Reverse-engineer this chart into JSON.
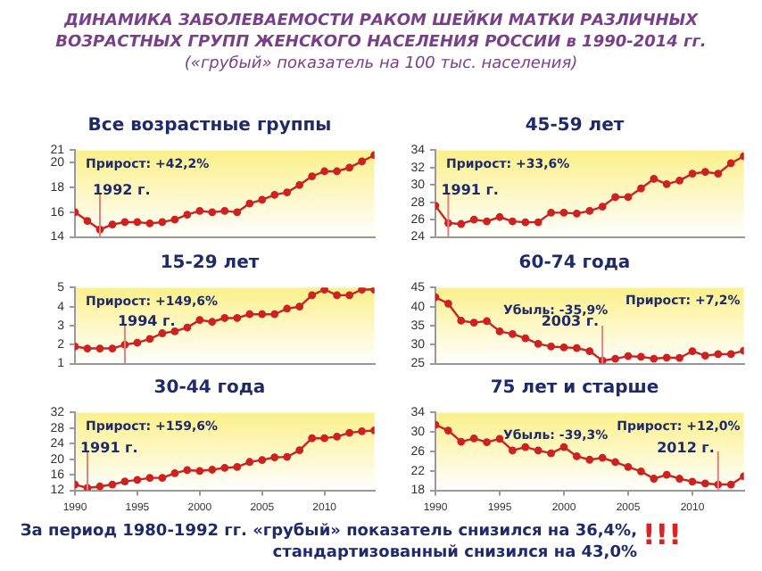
{
  "chart_data": [
    {
      "type": "other",
      "title": "ДИНАМИКА ЗАБОЛЕВАЕМОСТИ РАКОМ ШЕЙКИ МАТКИ РАЗЛИЧНЫХ ВОЗРАСТНЫХ ГРУПП ЖЕНСКОГО НАСЕЛЕНИЯ РОССИИ в 1990-2014 гг.",
      "subtitle": "(«грубый» показатель на 100 тыс. населения)"
    },
    {
      "type": "line",
      "title": "Все возрастные группы",
      "x": [
        1990,
        1991,
        1992,
        1993,
        1994,
        1995,
        1996,
        1997,
        1998,
        1999,
        2000,
        2001,
        2002,
        2003,
        2004,
        2005,
        2006,
        2007,
        2008,
        2009,
        2010,
        2011,
        2012,
        2013,
        2014
      ],
      "series": [
        {
          "color": "#cc2222",
          "values": [
            16.0,
            15.3,
            14.6,
            15.0,
            15.2,
            15.2,
            15.1,
            15.2,
            15.4,
            15.8,
            16.1,
            16.0,
            16.1,
            16.0,
            16.7,
            17.0,
            17.4,
            17.6,
            18.2,
            18.9,
            19.3,
            19.3,
            19.6,
            20.1,
            20.6
          ]
        }
      ],
      "xlim": [
        1990,
        2014
      ],
      "ylim": [
        14,
        21
      ],
      "yticks": [
        14,
        16,
        18,
        20,
        21
      ],
      "tick_labels": "y",
      "marker": "circle",
      "legend": false,
      "grid": false,
      "ref_lines": [
        {
          "axis": "x",
          "value": 1992,
          "label": "1992 г."
        }
      ],
      "annotations": [
        "Прирост: +42,2%"
      ]
    },
    {
      "type": "line",
      "title": "45-59 лет",
      "x": [
        1990,
        1991,
        1992,
        1993,
        1994,
        1995,
        1996,
        1997,
        1998,
        1999,
        2000,
        2001,
        2002,
        2003,
        2004,
        2005,
        2006,
        2007,
        2008,
        2009,
        2010,
        2011,
        2012,
        2013,
        2014
      ],
      "series": [
        {
          "color": "#cc2222",
          "values": [
            27.6,
            25.6,
            25.5,
            26.0,
            25.8,
            26.3,
            25.8,
            25.7,
            25.7,
            26.8,
            26.8,
            26.7,
            27.0,
            27.5,
            28.6,
            28.6,
            29.6,
            30.7,
            30.1,
            30.5,
            31.3,
            31.5,
            31.3,
            32.5,
            33.3
          ]
        }
      ],
      "xlim": [
        1990,
        2014
      ],
      "ylim": [
        24,
        34
      ],
      "yticks": [
        24,
        26,
        28,
        30,
        32,
        34
      ],
      "tick_labels": "y",
      "marker": "circle",
      "legend": false,
      "grid": false,
      "ref_lines": [
        {
          "axis": "x",
          "value": 1991,
          "label": "1991 г."
        }
      ],
      "annotations": [
        "Прирост: +33,6%"
      ]
    },
    {
      "type": "line",
      "title": "15-29 лет",
      "x": [
        1990,
        1991,
        1992,
        1993,
        1994,
        1995,
        1996,
        1997,
        1998,
        1999,
        2000,
        2001,
        2002,
        2003,
        2004,
        2005,
        2006,
        2007,
        2008,
        2009,
        2010,
        2011,
        2012,
        2013,
        2014
      ],
      "series": [
        {
          "color": "#cc2222",
          "values": [
            1.9,
            1.8,
            1.8,
            1.8,
            2.0,
            2.1,
            2.3,
            2.6,
            2.7,
            2.9,
            3.3,
            3.2,
            3.4,
            3.4,
            3.6,
            3.6,
            3.6,
            3.9,
            4.0,
            4.6,
            4.9,
            4.6,
            4.6,
            4.9,
            4.9
          ]
        }
      ],
      "xlim": [
        1990,
        2014
      ],
      "ylim": [
        1,
        5
      ],
      "yticks": [
        1,
        2,
        3,
        4,
        5
      ],
      "tick_labels": "y",
      "marker": "circle",
      "legend": false,
      "grid": false,
      "ref_lines": [
        {
          "axis": "x",
          "value": 1994,
          "label": "1994 г."
        }
      ],
      "annotations": [
        "Прирост: +149,6%"
      ]
    },
    {
      "type": "line",
      "title": "60-74 года",
      "x": [
        1990,
        1991,
        1992,
        1993,
        1994,
        1995,
        1996,
        1997,
        1998,
        1999,
        2000,
        2001,
        2002,
        2003,
        2004,
        2005,
        2006,
        2007,
        2008,
        2009,
        2010,
        2011,
        2012,
        2013,
        2014
      ],
      "series": [
        {
          "color": "#cc2222",
          "values": [
            42.5,
            40.8,
            36.3,
            35.8,
            36.2,
            33.5,
            32.8,
            31.7,
            30.2,
            29.5,
            29.3,
            29.1,
            28.3,
            25.8,
            26.3,
            27.0,
            26.8,
            26.3,
            26.6,
            26.5,
            28.3,
            27.1,
            27.5,
            27.5,
            28.4
          ]
        }
      ],
      "xlim": [
        1990,
        2014
      ],
      "ylim": [
        25,
        45
      ],
      "yticks": [
        25,
        30,
        35,
        40,
        45
      ],
      "tick_labels": "y",
      "marker": "circle",
      "legend": false,
      "grid": false,
      "ref_lines": [
        {
          "axis": "x",
          "value": 2003,
          "label": "2003 г."
        }
      ],
      "annotations": [
        "Убыль: -35,9%",
        "Прирост: +7,2%"
      ]
    },
    {
      "type": "line",
      "title": "30-44 года",
      "x": [
        1990,
        1991,
        1992,
        1993,
        1994,
        1995,
        1996,
        1997,
        1998,
        1999,
        2000,
        2001,
        2002,
        2003,
        2004,
        2005,
        2006,
        2007,
        2008,
        2009,
        2010,
        2011,
        2012,
        2013,
        2014
      ],
      "series": [
        {
          "color": "#cc2222",
          "values": [
            13.5,
            12.6,
            13.0,
            13.5,
            14.3,
            14.7,
            15.2,
            15.2,
            16.4,
            17.2,
            17.0,
            17.3,
            17.8,
            18.0,
            19.3,
            19.8,
            20.5,
            20.6,
            22.3,
            25.4,
            25.4,
            25.8,
            26.8,
            27.2,
            27.4
          ]
        }
      ],
      "xlim": [
        1990,
        2014
      ],
      "xticks": [
        1990,
        1995,
        2000,
        2005,
        2010
      ],
      "ylim": [
        12,
        32
      ],
      "yticks": [
        12,
        16,
        20,
        24,
        28,
        32
      ],
      "marker": "circle",
      "legend": false,
      "grid": false,
      "ref_lines": [
        {
          "axis": "x",
          "value": 1991,
          "label": "1991 г."
        }
      ],
      "annotations": [
        "Прирост: +159,6%"
      ]
    },
    {
      "type": "line",
      "title": "75 лет и старше",
      "x": [
        1990,
        1991,
        1992,
        1993,
        1994,
        1995,
        1996,
        1997,
        1998,
        1999,
        2000,
        2001,
        2002,
        2003,
        2004,
        2005,
        2006,
        2007,
        2008,
        2009,
        2010,
        2011,
        2012,
        2013,
        2014
      ],
      "series": [
        {
          "color": "#cc2222",
          "values": [
            31.5,
            30.3,
            28.0,
            28.7,
            27.9,
            28.6,
            26.2,
            26.9,
            26.2,
            25.6,
            26.9,
            25.0,
            24.3,
            24.7,
            23.8,
            22.8,
            21.9,
            20.4,
            21.2,
            20.4,
            19.8,
            19.4,
            19.2,
            19.2,
            20.9
          ]
        }
      ],
      "xlim": [
        1990,
        2014
      ],
      "xticks": [
        1990,
        1995,
        2000,
        2005,
        2010
      ],
      "ylim": [
        18,
        34
      ],
      "yticks": [
        18,
        22,
        26,
        30,
        34
      ],
      "marker": "circle",
      "legend": false,
      "grid": false,
      "ref_lines": [
        {
          "axis": "x",
          "value": 2012,
          "label": "2012 г."
        }
      ],
      "annotations": [
        "Убыль: -39,3%",
        "Прирост: +12,0%"
      ]
    },
    {
      "type": "other",
      "annotations": [
        "За период 1980-1992 гг. «грубый» показатель снизился на 36,4%,",
        "стандартизованный снизился на 43,0%",
        "!!!"
      ]
    }
  ]
}
